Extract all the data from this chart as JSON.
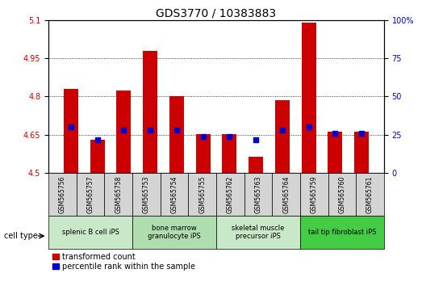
{
  "title": "GDS3770 / 10383883",
  "samples": [
    "GSM565756",
    "GSM565757",
    "GSM565758",
    "GSM565753",
    "GSM565754",
    "GSM565755",
    "GSM565762",
    "GSM565763",
    "GSM565764",
    "GSM565759",
    "GSM565760",
    "GSM565761"
  ],
  "transformed_count": [
    4.83,
    4.63,
    4.825,
    4.978,
    4.8,
    4.652,
    4.652,
    4.565,
    4.785,
    5.09,
    4.662,
    4.662
  ],
  "percentile_rank": [
    30,
    22,
    28,
    28,
    28,
    24,
    24,
    22,
    28,
    30,
    26,
    26
  ],
  "ylim_left": [
    4.5,
    5.1
  ],
  "ylim_right": [
    0,
    100
  ],
  "yticks_left": [
    4.5,
    4.65,
    4.8,
    4.95,
    5.1
  ],
  "yticks_left_labels": [
    "4.5",
    "4.65",
    "4.8",
    "4.95",
    "5.1"
  ],
  "yticks_right": [
    0,
    25,
    50,
    75,
    100
  ],
  "yticks_right_labels": [
    "0",
    "25",
    "50",
    "75",
    "100%"
  ],
  "bar_color": "#cc0000",
  "dot_color": "#0000cc",
  "bar_width": 0.55,
  "cell_types": [
    {
      "label": "splenic B cell iPS",
      "start": 0,
      "end": 3,
      "color": "#c8e8c8"
    },
    {
      "label": "bone marrow\ngranulocyte iPS",
      "start": 3,
      "end": 6,
      "color": "#b0ddb0"
    },
    {
      "label": "skeletal muscle\nprecursor iPS",
      "start": 6,
      "end": 9,
      "color": "#c8e8c8"
    },
    {
      "label": "tail tip fibroblast iPS",
      "start": 9,
      "end": 12,
      "color": "#44cc44"
    }
  ],
  "title_fontsize": 10,
  "tick_fontsize": 7,
  "label_color_left": "#cc0000",
  "label_color_right": "#0000cc",
  "legend_fontsize": 7
}
